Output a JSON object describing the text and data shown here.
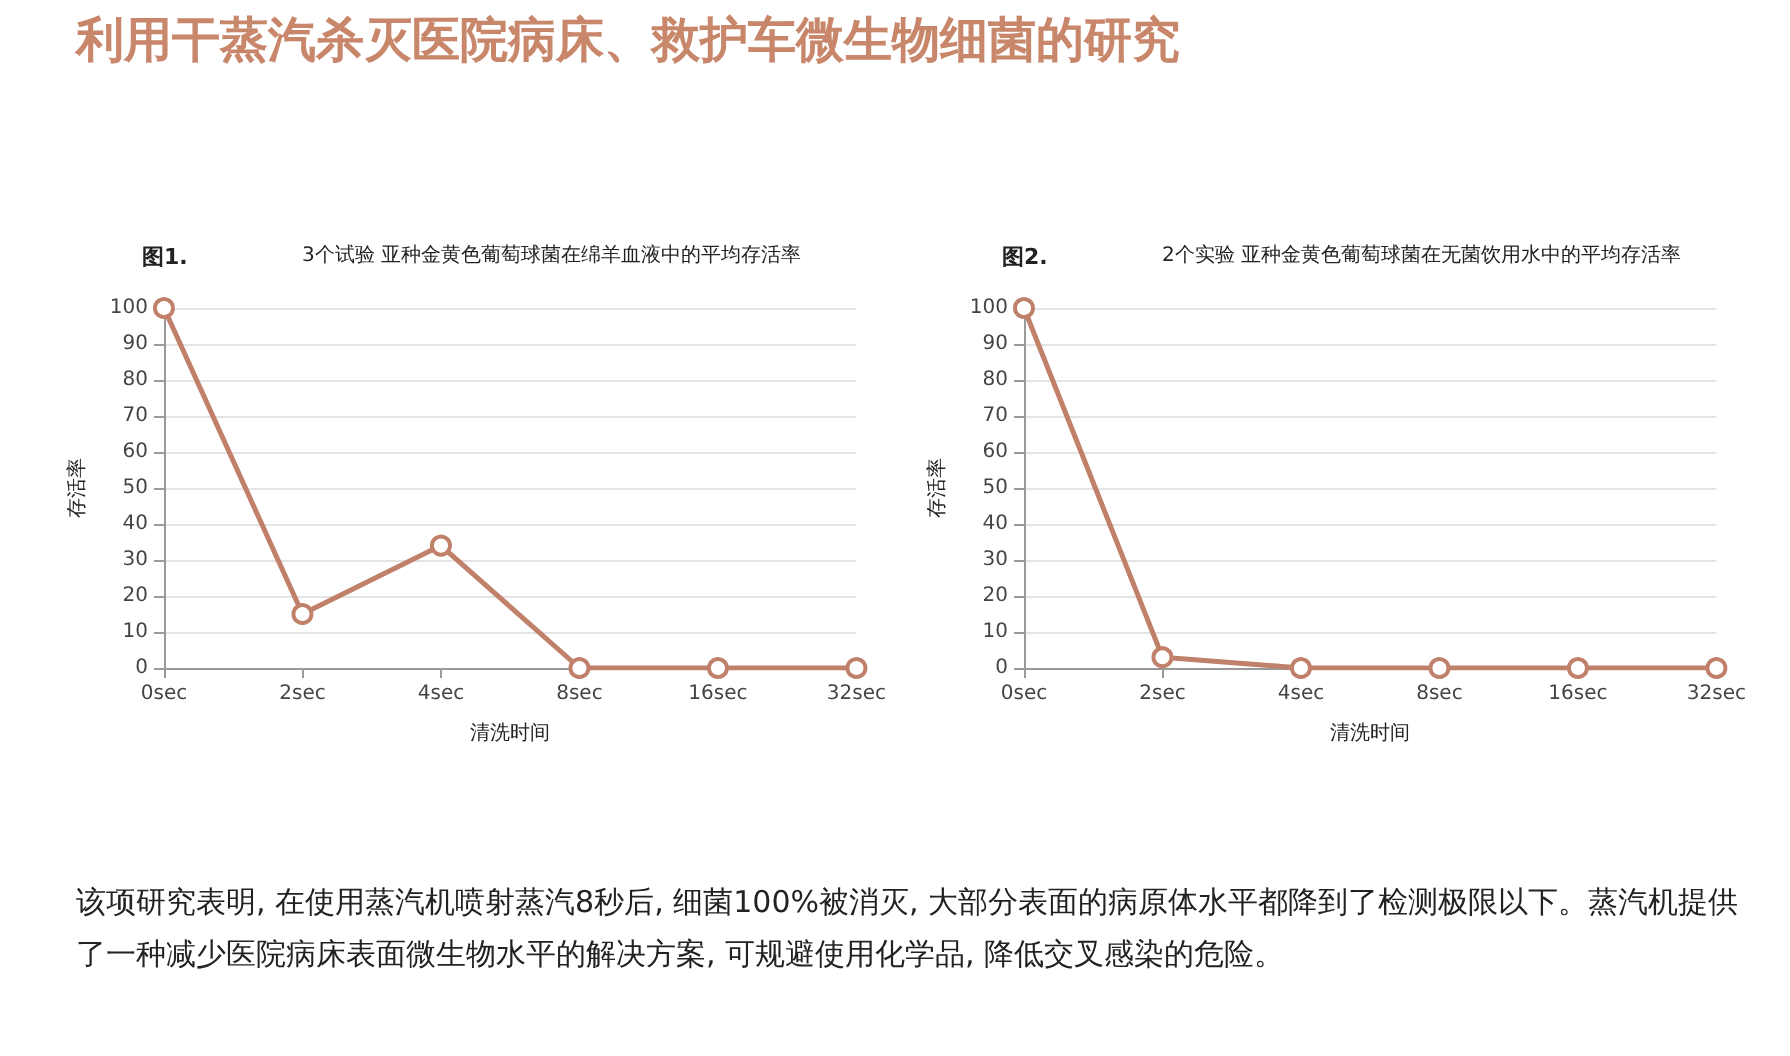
{
  "chart_data": [
    {
      "type": "other",
      "title": "利用干蒸汽杀灭医院病床、救护车微生物细菌的研究",
      "annotations": [
        "该项研究表明, 在使用蒸汽机喷射蒸汽8秒后, 细菌100%被消灭, 大部分表面的病原体水平都降到了检测极限以下。蒸汽机提供了一种减少医院病床表面微生物水平的解决方案, 可规避使用化学品, 降低交叉感染的危险。"
      ]
    },
    {
      "type": "line",
      "title": "图1.",
      "subtitle": "3个试验 亚种金黄色葡萄球菌在绵羊血液中的平均存活率",
      "xlabel": "清洗时间",
      "ylabel": "存活率",
      "categories": [
        "0sec",
        "2sec",
        "4sec",
        "8sec",
        "16sec",
        "32sec"
      ],
      "series": [
        {
          "color": "#c0806a",
          "values": [
            100,
            15,
            34,
            0,
            0,
            0
          ]
        }
      ],
      "ylim": [
        0,
        100
      ],
      "yticks": [
        0,
        10,
        20,
        30,
        40,
        50,
        60,
        70,
        80,
        90,
        100
      ],
      "grid": "y",
      "marker": "circle"
    },
    {
      "type": "line",
      "title": "图2.",
      "subtitle": "2个实验 亚种金黄色葡萄球菌在无菌饮用水中的平均存活率",
      "xlabel": "清洗时间",
      "ylabel": "存活率",
      "categories": [
        "0sec",
        "2sec",
        "4sec",
        "8sec",
        "16sec",
        "32sec"
      ],
      "series": [
        {
          "color": "#c0806a",
          "values": [
            100,
            3,
            0,
            0,
            0,
            0
          ]
        }
      ],
      "ylim": [
        0,
        100
      ],
      "yticks": [
        0,
        10,
        20,
        30,
        40,
        50,
        60,
        70,
        80,
        90,
        100
      ],
      "grid": "y",
      "marker": "circle"
    }
  ]
}
